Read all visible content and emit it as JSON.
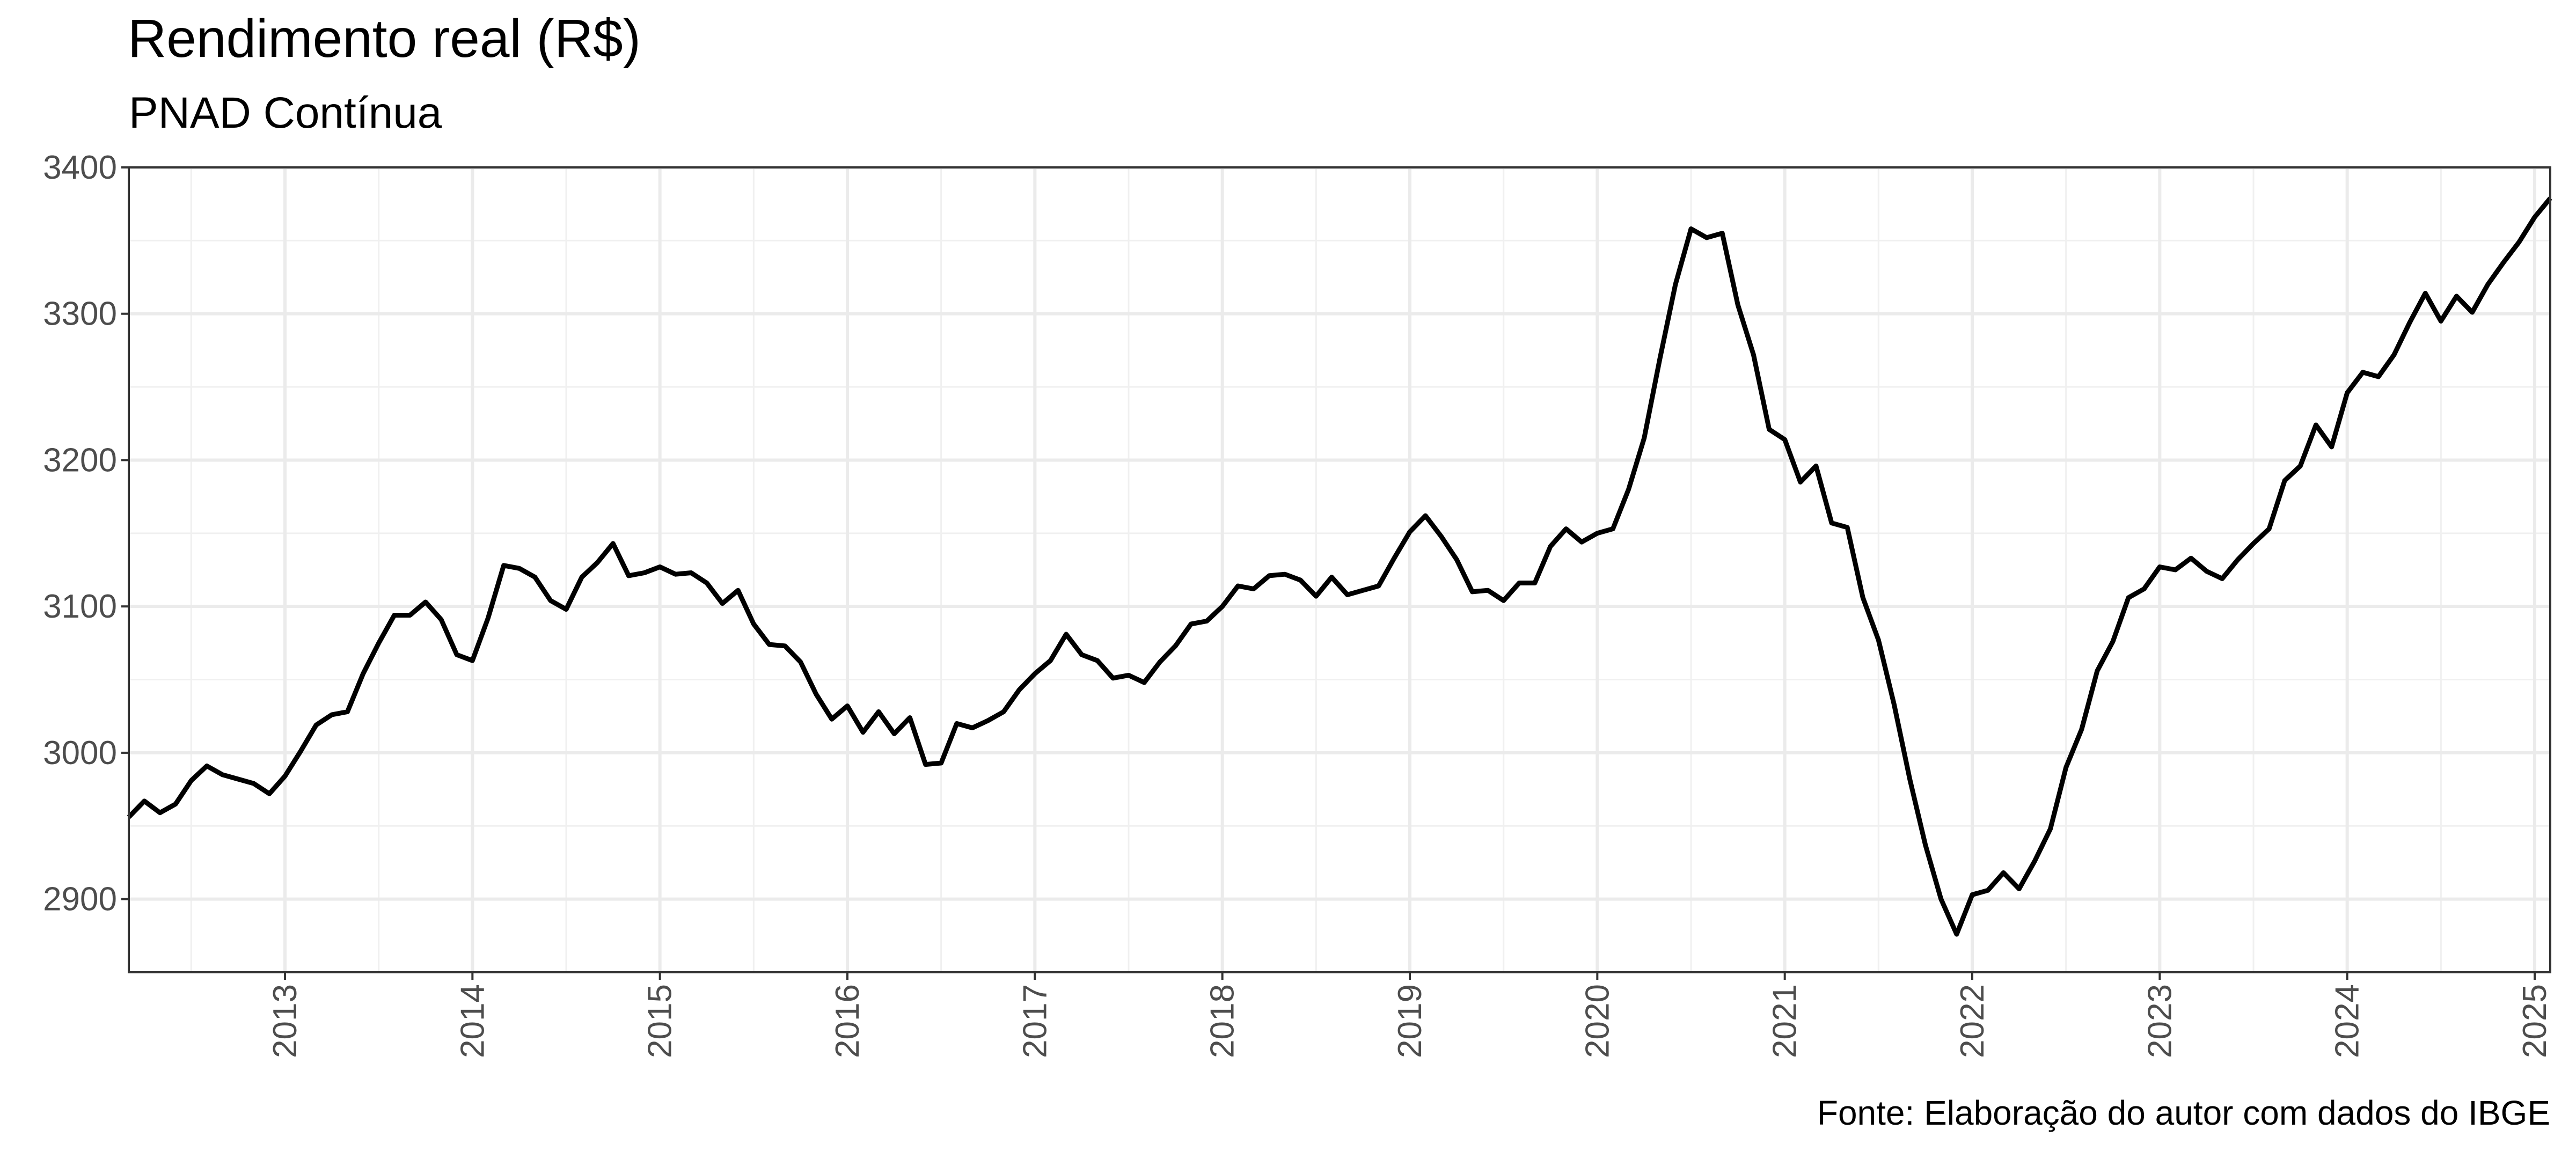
{
  "chart_data": {
    "type": "line",
    "title": "Rendimento real (R$)",
    "subtitle": "PNAD Contínua",
    "caption": "Fonte: Elaboração do autor com dados do IBGE",
    "xlabel": "",
    "ylabel": "",
    "xlim": [
      2012.167,
      2025.083
    ],
    "ylim": [
      2850,
      3400
    ],
    "x_ticks": [
      "2013",
      "2014",
      "2015",
      "2016",
      "2017",
      "2018",
      "2019",
      "2020",
      "2021",
      "2022",
      "2023",
      "2024",
      "2025"
    ],
    "y_ticks": [
      "2900",
      "3000",
      "3100",
      "3200",
      "3300",
      "3400"
    ],
    "grid": true,
    "legend": "none",
    "line_color": "#000000",
    "series": [
      {
        "x_start": "2012-03",
        "step": "month",
        "values": [
          2956,
          2967,
          2959,
          2965,
          2981,
          2991,
          2985,
          2982,
          2979,
          2972,
          2984,
          3001,
          3019,
          3026,
          3028,
          3054,
          3075,
          3094,
          3094,
          3103,
          3091,
          3067,
          3063,
          3092,
          3128,
          3126,
          3120,
          3104,
          3098,
          3120,
          3130,
          3143,
          3121,
          3123,
          3127,
          3122,
          3123,
          3116,
          3102,
          3111,
          3088,
          3074,
          3073,
          3062,
          3040,
          3023,
          3032,
          3014,
          3028,
          3013,
          3024,
          2992,
          2993,
          3020,
          3017,
          3022,
          3028,
          3043,
          3054,
          3063,
          3081,
          3067,
          3063,
          3051,
          3053,
          3048,
          3062,
          3073,
          3088,
          3090,
          3100,
          3114,
          3112,
          3121,
          3122,
          3118,
          3107,
          3120,
          3108,
          3111,
          3114,
          3133,
          3151,
          3162,
          3148,
          3132,
          3110,
          3111,
          3104,
          3116,
          3116,
          3141,
          3153,
          3144,
          3150,
          3153,
          3180,
          3215,
          3269,
          3320,
          3358,
          3352,
          3355,
          3306,
          3272,
          3221,
          3214,
          3185,
          3196,
          3157,
          3154,
          3106,
          3077,
          3033,
          2982,
          2937,
          2900,
          2876,
          2903,
          2906,
          2918,
          2907,
          2926,
          2948,
          2990,
          3016,
          3056,
          3076,
          3106,
          3112,
          3127,
          3125,
          3133,
          3124,
          3119,
          3132,
          3143,
          3153,
          3186,
          3196,
          3224,
          3209,
          3246,
          3260,
          3257,
          3272,
          3294,
          3314,
          3295,
          3312,
          3301,
          3320,
          3335,
          3349,
          3366,
          3379
        ]
      }
    ]
  }
}
